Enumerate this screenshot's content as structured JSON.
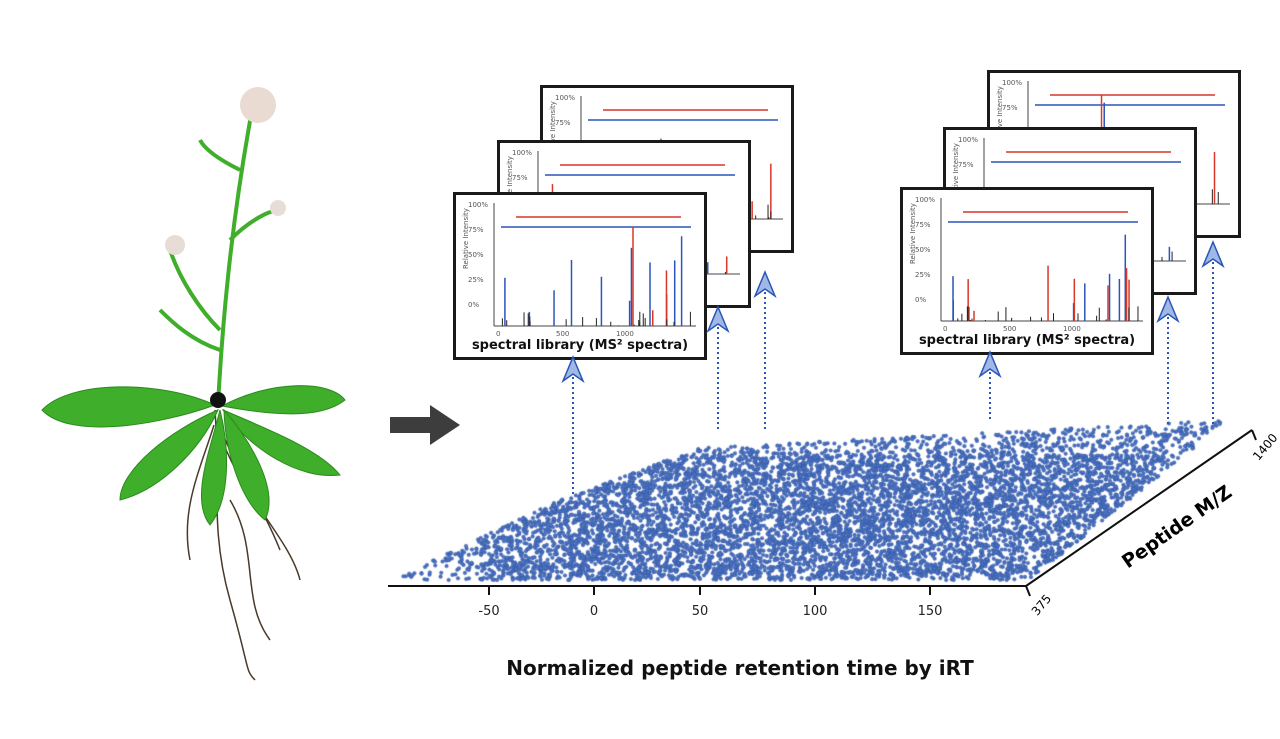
{
  "spectra_cards": {
    "caption": "spectral library (MS² spectra)",
    "y_axis_label": "Relative Intensity",
    "y_ticks": [
      "100%",
      "75%",
      "50%",
      "25%",
      "0%"
    ],
    "x_ticks": [
      "0",
      "500",
      "1000"
    ]
  },
  "axes": {
    "x_label": "Normalized peptide retention time by iRT",
    "x_ticks": [
      "-50",
      "0",
      "50",
      "100",
      "150"
    ],
    "z_label": "Peptide M/Z",
    "z_ticks": [
      "375",
      "1400"
    ]
  },
  "colors": {
    "points": "#4a72c4",
    "b_ions": "#d8372a",
    "y_ions": "#2b55b8",
    "arrow": "#3d3d3d",
    "plant": "#3fae2a"
  }
}
